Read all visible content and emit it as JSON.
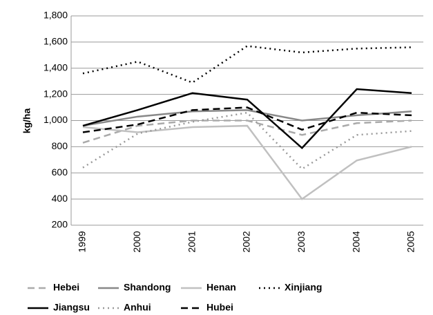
{
  "chart_data": {
    "type": "line",
    "y_label": "kg/ha",
    "categories": [
      "1999",
      "2000",
      "2001",
      "2002",
      "2003",
      "2004",
      "2005"
    ],
    "ylim": [
      200,
      1800
    ],
    "yticks": [
      200,
      400,
      600,
      800,
      {
        "value": 1000,
        "label": "1,000"
      },
      {
        "value": 1200,
        "label": "1,200"
      },
      {
        "value": 1400,
        "label": "1,400"
      },
      {
        "value": 1600,
        "label": "1,600"
      },
      {
        "value": 1800,
        "label": "1,800"
      }
    ],
    "grid": true,
    "series": [
      {
        "name": "Hebei",
        "color": "#aaaaaa",
        "dash": "dashed",
        "values": [
          830,
          960,
          1000,
          1000,
          890,
          980,
          1000
        ]
      },
      {
        "name": "Shandong",
        "color": "#888888",
        "dash": "solid",
        "values": [
          960,
          1030,
          1070,
          1080,
          1000,
          1040,
          1070
        ]
      },
      {
        "name": "Henan",
        "color": "#c0c0c0",
        "dash": "solid",
        "values": [
          950,
          910,
          950,
          960,
          400,
          695,
          800
        ]
      },
      {
        "name": "Xinjiang",
        "color": "#000000",
        "dash": "dotted",
        "values": [
          1360,
          1450,
          1290,
          1570,
          1520,
          1550,
          1560
        ]
      },
      {
        "name": "Jiangsu",
        "color": "#000000",
        "dash": "solid",
        "values": [
          960,
          1080,
          1210,
          1160,
          790,
          1240,
          1210
        ]
      },
      {
        "name": "Anhui",
        "color": "#999999",
        "dash": "dotted",
        "values": [
          640,
          900,
          990,
          1060,
          630,
          890,
          920
        ]
      },
      {
        "name": "Hubei",
        "color": "#000000",
        "dash": "dashed",
        "values": [
          910,
          970,
          1080,
          1100,
          930,
          1060,
          1040
        ]
      }
    ]
  }
}
